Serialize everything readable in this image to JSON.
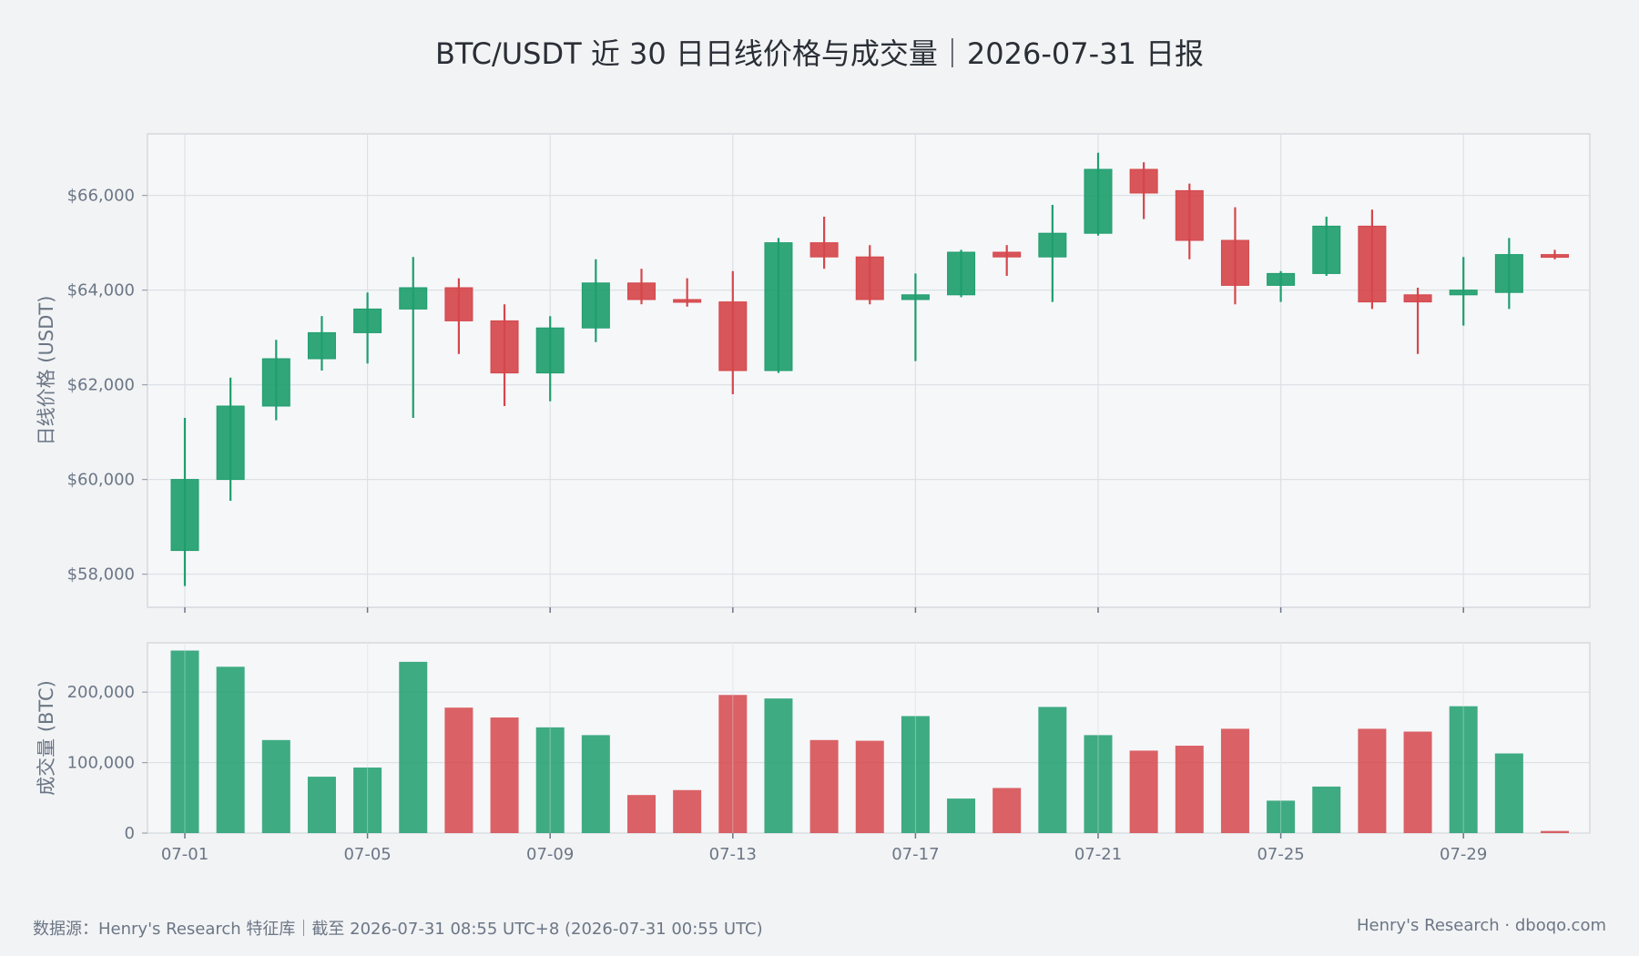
{
  "title": "BTC/USDT 近 30 日日线价格与成交量｜2026-07-31 日报",
  "footer": {
    "source": "数据源：Henry's Research 特征库｜截至 2026-07-31 08:55 UTC+8 (2026-07-31 00:55 UTC)",
    "brand": "Henry's Research · dboqo.com"
  },
  "colors": {
    "up": "#1f9e6e",
    "down": "#d5474b",
    "grid": "#dde1e6",
    "panel_bg": "#f6f7f9",
    "panel_border": "#d5d9de"
  },
  "chart_data": [
    {
      "type": "candlestick",
      "ylabel": "日线价格 (USDT)",
      "ylim": [
        57300,
        67300
      ],
      "yticks": [
        58000,
        60000,
        62000,
        64000,
        66000
      ],
      "ytick_labels": [
        "$58,000",
        "$60,000",
        "$62,000",
        "$64,000",
        "$66,000"
      ],
      "dates": [
        "07-01",
        "07-02",
        "07-03",
        "07-04",
        "07-05",
        "07-06",
        "07-07",
        "07-08",
        "07-09",
        "07-10",
        "07-11",
        "07-12",
        "07-13",
        "07-14",
        "07-15",
        "07-16",
        "07-17",
        "07-18",
        "07-19",
        "07-20",
        "07-21",
        "07-22",
        "07-23",
        "07-24",
        "07-25",
        "07-26",
        "07-27",
        "07-28",
        "07-29",
        "07-30",
        "07-31"
      ],
      "open": [
        58500,
        60000,
        61550,
        62550,
        63100,
        63600,
        64050,
        63350,
        62250,
        63200,
        64150,
        63800,
        63750,
        62300,
        65000,
        64700,
        63800,
        63900,
        64800,
        64700,
        65200,
        66550,
        66100,
        65050,
        64100,
        64350,
        65350,
        63900,
        63900,
        63950,
        64750
      ],
      "high": [
        61300,
        62150,
        62950,
        63450,
        63950,
        64700,
        64250,
        63700,
        63450,
        64650,
        64450,
        64250,
        64400,
        65100,
        65550,
        64950,
        64350,
        64850,
        64950,
        65800,
        66900,
        66700,
        66250,
        65750,
        64400,
        65550,
        65700,
        64050,
        64700,
        65100,
        64850
      ],
      "low": [
        57750,
        59550,
        61250,
        62300,
        62450,
        61300,
        62650,
        61550,
        61650,
        62900,
        63700,
        63650,
        61800,
        62250,
        64450,
        63700,
        62500,
        63850,
        64300,
        63750,
        65150,
        65500,
        64650,
        63700,
        63750,
        64300,
        63600,
        62650,
        63250,
        63600,
        64650
      ],
      "close": [
        60000,
        61550,
        62550,
        63100,
        63600,
        64050,
        63350,
        62250,
        63200,
        64150,
        63800,
        63750,
        62300,
        65000,
        64700,
        63800,
        63900,
        64800,
        64700,
        65200,
        66550,
        66050,
        65050,
        64100,
        64350,
        65350,
        63750,
        63750,
        64000,
        64750,
        64700
      ],
      "xticks": [
        "07-01",
        "07-05",
        "07-09",
        "07-13",
        "07-17",
        "07-21",
        "07-25",
        "07-29"
      ]
    },
    {
      "type": "bar",
      "ylabel": "成交量 (BTC)",
      "ylim": [
        0,
        270000
      ],
      "yticks": [
        0,
        100000,
        200000
      ],
      "ytick_labels": [
        "0",
        "100,000",
        "200,000"
      ],
      "values": [
        259000,
        236000,
        132000,
        80000,
        93000,
        243000,
        178000,
        164000,
        150000,
        139000,
        54000,
        61000,
        196000,
        191000,
        132000,
        131000,
        166000,
        49000,
        64000,
        179000,
        139000,
        117000,
        124000,
        148000,
        46000,
        66000,
        148000,
        144000,
        180000,
        113000,
        3000
      ]
    }
  ]
}
